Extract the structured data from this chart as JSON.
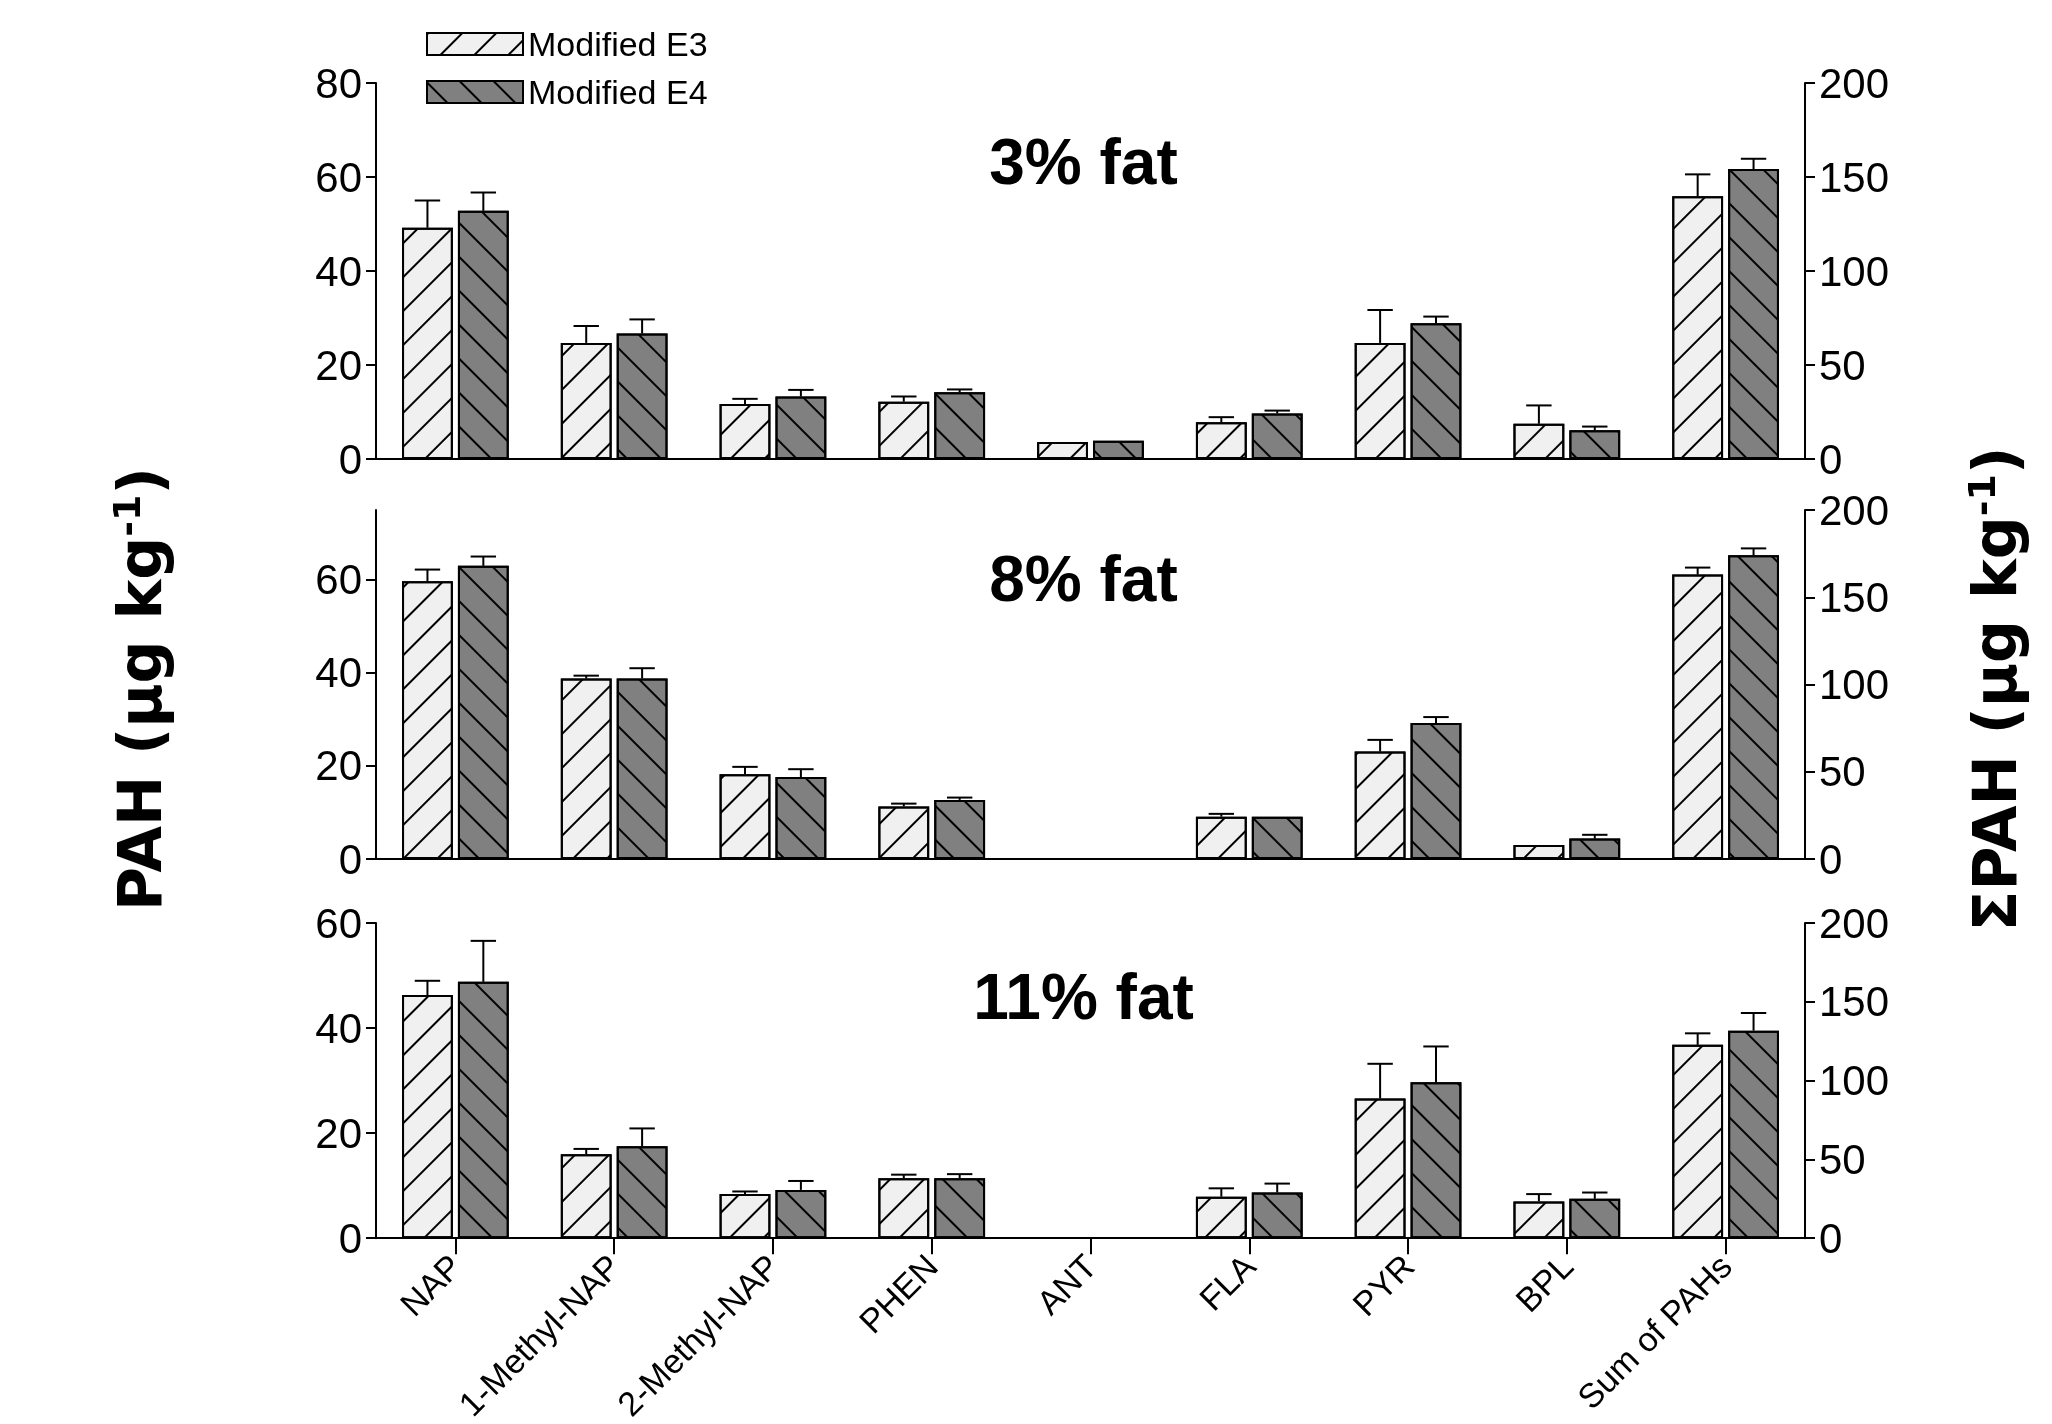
{
  "chart_data": [
    {
      "type": "bar",
      "title": "3% fat",
      "categories": [
        null,
        null,
        null,
        null,
        null,
        null,
        null,
        null,
        null
      ],
      "tick_labels": "y",
      "legend": "top left",
      "ylim": [
        0,
        80
      ],
      "yticks": [
        0,
        20,
        40,
        60,
        80
      ],
      "y2lim": [
        0,
        200
      ],
      "y2ticks": [
        0,
        50,
        100,
        150,
        200
      ],
      "series": [
        {
          "name": "Modified E3",
          "color": "#f0f0f0",
          "values": [
            49.2,
            24.7,
            11.7,
            12.2,
            3.6,
            7.8,
            24.7,
            7.5,
            null
          ],
          "errors": [
            5.8,
            3.6,
            1.1,
            1.1,
            null,
            1.1,
            7,
            3.9,
            null
          ]
        },
        {
          "name": "Modified E4",
          "color": "#808080",
          "values": [
            52.8,
            26.7,
            13.3,
            14.2,
            3.9,
            9.7,
            28.9,
            6.1,
            null
          ],
          "errors": [
            3.9,
            3,
            1.4,
            0.6,
            null,
            0.6,
            1.4,
            0.8,
            null
          ]
        },
        {
          "color": "#f0f0f0",
          "axis": "y2",
          "values": [
            null,
            null,
            null,
            null,
            null,
            null,
            null,
            null,
            139.8
          ],
          "errors": [
            null,
            null,
            null,
            null,
            null,
            null,
            null,
            null,
            11.6
          ]
        },
        {
          "color": "#808080",
          "axis": "y2",
          "values": [
            null,
            null,
            null,
            null,
            null,
            null,
            null,
            null,
            154.2
          ],
          "errors": [
            null,
            null,
            null,
            null,
            null,
            null,
            null,
            null,
            5.5
          ]
        }
      ]
    },
    {
      "type": "bar",
      "title": "8% fat",
      "ylabel": "PAH (μg kg$^{-1}$)",
      "y2label": "ΣPAH (μg kg$^{-1}$)",
      "categories": [
        null,
        null,
        null,
        null,
        null,
        null,
        null,
        null,
        null
      ],
      "tick_labels": "y",
      "ylim": [
        0,
        75
      ],
      "yticks": [
        0,
        20,
        40,
        60
      ],
      "y2lim": [
        0,
        200
      ],
      "y2ticks": [
        0,
        50,
        100,
        150,
        200
      ],
      "series": [
        {
          "color": "#f0f0f0",
          "values": [
            59.7,
            38.8,
            18.2,
            11.3,
            null,
            9.1,
            23.1,
            3,
            null
          ],
          "errors": [
            2.5,
            0.6,
            1.6,
            0.6,
            null,
            0.6,
            2.5,
            null,
            null
          ]
        },
        {
          "color": "#808080",
          "values": [
            63,
            38.8,
            17.6,
            12.7,
            null,
            9.1,
            29.2,
            4.4,
            null
          ],
          "errors": [
            2,
            2.2,
            1.7,
            0.5,
            null,
            null,
            1.3,
            0.8,
            null
          ]
        },
        {
          "color": "#f0f0f0",
          "axis": "y2",
          "values": [
            null,
            null,
            null,
            null,
            null,
            null,
            null,
            null,
            163
          ],
          "errors": [
            null,
            null,
            null,
            null,
            null,
            null,
            null,
            null,
            4
          ]
        },
        {
          "color": "#808080",
          "axis": "y2",
          "values": [
            null,
            null,
            null,
            null,
            null,
            null,
            null,
            null,
            174
          ],
          "errors": [
            null,
            null,
            null,
            null,
            null,
            null,
            null,
            null,
            4
          ]
        }
      ]
    },
    {
      "type": "bar",
      "title": "11% fat",
      "categories": [
        "NAP",
        "1-Methyl-NAP",
        "2-Methyl-NAP",
        "PHEN",
        "ANT",
        "FLA",
        "PYR",
        "BPL",
        "Sum of PAHs"
      ],
      "ylim": [
        0,
        60
      ],
      "yticks": [
        0,
        20,
        40,
        60
      ],
      "y2lim": [
        0,
        200
      ],
      "y2ticks": [
        0,
        50,
        100,
        150,
        200
      ],
      "series": [
        {
          "color": "#f0f0f0",
          "values": [
            46.3,
            16,
            8.4,
            11.4,
            null,
            7.9,
            26.6,
            7,
            null
          ],
          "errors": [
            2.7,
            1,
            0.5,
            0.7,
            null,
            1.6,
            6.6,
            1.4,
            null
          ]
        },
        {
          "color": "#808080",
          "values": [
            48.8,
            17.5,
            9.2,
            11.4,
            null,
            8.7,
            29.7,
            7.5,
            null
          ],
          "errors": [
            7.8,
            3.4,
            1.7,
            0.8,
            null,
            1.7,
            6.8,
            1.2,
            null
          ]
        },
        {
          "color": "#f0f0f0",
          "axis": "y2",
          "values": [
            null,
            null,
            null,
            null,
            null,
            null,
            null,
            null,
            122.7
          ],
          "errors": [
            null,
            null,
            null,
            null,
            null,
            null,
            null,
            null,
            7.3
          ]
        },
        {
          "color": "#808080",
          "axis": "y2",
          "values": [
            null,
            null,
            null,
            null,
            null,
            null,
            null,
            null,
            131.7
          ],
          "errors": [
            null,
            null,
            null,
            null,
            null,
            null,
            null,
            null,
            11.2
          ]
        }
      ]
    }
  ]
}
